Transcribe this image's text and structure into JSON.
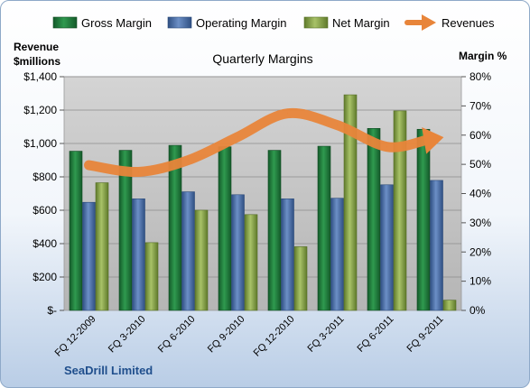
{
  "chart_data": {
    "type": "bar",
    "title": "Quarterly Margins",
    "company": "SeaDrill Limited",
    "left_axis": {
      "title_line1": "Revenue",
      "title_line2": "$millions",
      "range": [
        0,
        1400
      ],
      "ticks": [
        {
          "value": 0,
          "label": "$-"
        },
        {
          "value": 200,
          "label": "$200"
        },
        {
          "value": 400,
          "label": "$400"
        },
        {
          "value": 600,
          "label": "$600"
        },
        {
          "value": 800,
          "label": "$800"
        },
        {
          "value": 1000,
          "label": "$1,000"
        },
        {
          "value": 1200,
          "label": "$1,200"
        },
        {
          "value": 1400,
          "label": "$1,400"
        }
      ]
    },
    "right_axis": {
      "title": "Margin %",
      "range": [
        0,
        80
      ],
      "ticks": [
        {
          "value": 0,
          "label": "0%"
        },
        {
          "value": 10,
          "label": "10%"
        },
        {
          "value": 20,
          "label": "20%"
        },
        {
          "value": 30,
          "label": "30%"
        },
        {
          "value": 40,
          "label": "40%"
        },
        {
          "value": 50,
          "label": "50%"
        },
        {
          "value": 60,
          "label": "60%"
        },
        {
          "value": 70,
          "label": "70%"
        },
        {
          "value": 80,
          "label": "80%"
        }
      ]
    },
    "categories": [
      "FQ 12-2009",
      "FQ 3-2010",
      "FQ 6-2010",
      "FQ 9-2010",
      "FQ 12-2010",
      "FQ 3-2011",
      "FQ 6-2011",
      "FQ 9-2011"
    ],
    "series": [
      {
        "name": "Gross Margin",
        "axis": "right",
        "kind": "bar",
        "color": "#1e7a3c",
        "values": [
          54.5,
          54.8,
          56.5,
          56.0,
          54.8,
          56.2,
          62.3,
          62.0
        ]
      },
      {
        "name": "Operating Margin",
        "axis": "right",
        "kind": "bar",
        "color": "#4f74ad",
        "values": [
          37.0,
          38.2,
          40.6,
          39.6,
          38.2,
          38.4,
          43.0,
          44.5
        ]
      },
      {
        "name": "Net Margin",
        "axis": "right",
        "kind": "bar",
        "color": "#8faa4e",
        "values": [
          43.7,
          23.2,
          34.3,
          32.8,
          21.8,
          73.8,
          68.3,
          3.5
        ]
      },
      {
        "name": "Revenues",
        "axis": "left",
        "kind": "line",
        "color": "#e8853a",
        "values": [
          870,
          830,
          900,
          1040,
          1180,
          1110,
          980,
          1030
        ]
      }
    ],
    "grid": true,
    "legend_position": "top"
  }
}
